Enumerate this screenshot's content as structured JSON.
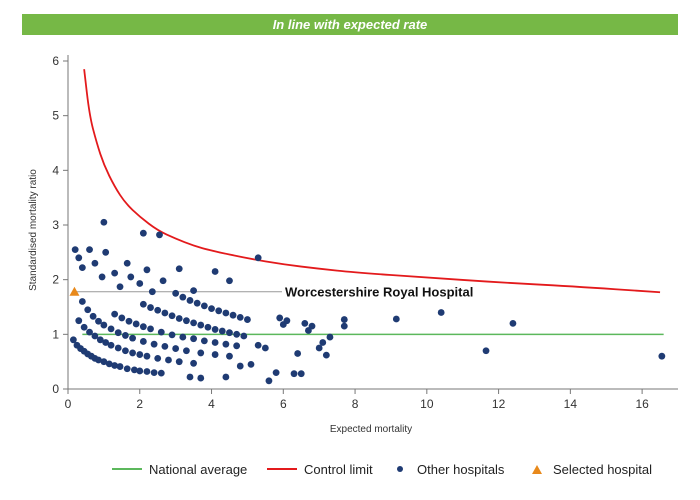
{
  "banner": {
    "text": "In line with expected rate",
    "color": "#76b846"
  },
  "chart_data": {
    "type": "scatter",
    "xlabel": "Expected mortality",
    "ylabel": "Standardised mortality ratio",
    "xlim": [
      0,
      17
    ],
    "ylim": [
      0,
      6
    ],
    "x_ticks": [
      0,
      2,
      4,
      6,
      8,
      10,
      12,
      14,
      16
    ],
    "y_ticks": [
      0,
      1,
      2,
      3,
      4,
      5,
      6
    ],
    "grid": false,
    "legend_placement": "bottom",
    "colors": {
      "national": "#5cb85c",
      "control": "#e31a1c",
      "other": "#1f3b73",
      "selected": "#e8891b",
      "reference": "#999999"
    },
    "national_average": {
      "name": "National average",
      "y": 1.0,
      "x_range": [
        0.4,
        16.6
      ]
    },
    "control_limit": {
      "name": "Control limit",
      "points": [
        [
          0.45,
          5.85
        ],
        [
          0.6,
          5.0
        ],
        [
          0.8,
          4.5
        ],
        [
          1.0,
          4.1
        ],
        [
          1.3,
          3.7
        ],
        [
          1.6,
          3.4
        ],
        [
          2.0,
          3.15
        ],
        [
          2.5,
          2.9
        ],
        [
          3.0,
          2.75
        ],
        [
          3.5,
          2.62
        ],
        [
          4.0,
          2.53
        ],
        [
          5.0,
          2.39
        ],
        [
          6.0,
          2.28
        ],
        [
          7.0,
          2.2
        ],
        [
          8.0,
          2.13
        ],
        [
          10.0,
          2.04
        ],
        [
          12.0,
          1.95
        ],
        [
          14.0,
          1.88
        ],
        [
          16.5,
          1.77
        ]
      ]
    },
    "selected_hospital": {
      "name": "Selected hospital",
      "label": "Worcestershire Royal Hospital",
      "x": 0.18,
      "y": 1.78
    },
    "other_hospitals": {
      "name": "Other hospitals",
      "points": [
        [
          0.15,
          0.9
        ],
        [
          0.25,
          0.8
        ],
        [
          0.35,
          0.74
        ],
        [
          0.45,
          0.69
        ],
        [
          0.55,
          0.64
        ],
        [
          0.65,
          0.6
        ],
        [
          0.75,
          0.56
        ],
        [
          0.85,
          0.53
        ],
        [
          1.0,
          0.5
        ],
        [
          1.15,
          0.46
        ],
        [
          1.3,
          0.43
        ],
        [
          1.45,
          0.41
        ],
        [
          1.65,
          0.37
        ],
        [
          1.85,
          0.35
        ],
        [
          2.0,
          0.33
        ],
        [
          2.2,
          0.32
        ],
        [
          2.4,
          0.3
        ],
        [
          2.6,
          0.29
        ],
        [
          0.3,
          1.25
        ],
        [
          0.45,
          1.13
        ],
        [
          0.6,
          1.04
        ],
        [
          0.75,
          0.97
        ],
        [
          0.9,
          0.9
        ],
        [
          1.05,
          0.85
        ],
        [
          1.2,
          0.8
        ],
        [
          1.4,
          0.75
        ],
        [
          1.6,
          0.7
        ],
        [
          1.8,
          0.66
        ],
        [
          2.0,
          0.63
        ],
        [
          2.2,
          0.6
        ],
        [
          2.5,
          0.56
        ],
        [
          2.8,
          0.53
        ],
        [
          3.1,
          0.5
        ],
        [
          3.5,
          0.47
        ],
        [
          0.4,
          1.6
        ],
        [
          0.55,
          1.45
        ],
        [
          0.7,
          1.33
        ],
        [
          0.85,
          1.24
        ],
        [
          1.0,
          1.17
        ],
        [
          1.2,
          1.1
        ],
        [
          1.4,
          1.03
        ],
        [
          1.6,
          0.98
        ],
        [
          1.8,
          0.93
        ],
        [
          2.1,
          0.87
        ],
        [
          2.4,
          0.82
        ],
        [
          2.7,
          0.78
        ],
        [
          3.0,
          0.74
        ],
        [
          3.3,
          0.7
        ],
        [
          3.7,
          0.66
        ],
        [
          4.1,
          0.63
        ],
        [
          4.5,
          0.6
        ],
        [
          1.3,
          1.37
        ],
        [
          1.5,
          1.3
        ],
        [
          1.7,
          1.24
        ],
        [
          1.9,
          1.19
        ],
        [
          2.1,
          1.14
        ],
        [
          2.3,
          1.1
        ],
        [
          2.6,
          1.04
        ],
        [
          2.9,
          0.99
        ],
        [
          3.2,
          0.95
        ],
        [
          3.5,
          0.92
        ],
        [
          3.8,
          0.88
        ],
        [
          4.1,
          0.85
        ],
        [
          4.4,
          0.82
        ],
        [
          4.7,
          0.79
        ],
        [
          2.1,
          1.55
        ],
        [
          2.3,
          1.49
        ],
        [
          2.5,
          1.44
        ],
        [
          2.7,
          1.39
        ],
        [
          2.9,
          1.34
        ],
        [
          3.1,
          1.29
        ],
        [
          3.3,
          1.25
        ],
        [
          3.5,
          1.21
        ],
        [
          3.7,
          1.17
        ],
        [
          3.9,
          1.13
        ],
        [
          4.1,
          1.09
        ],
        [
          4.3,
          1.06
        ],
        [
          4.5,
          1.03
        ],
        [
          4.7,
          1.0
        ],
        [
          4.9,
          0.97
        ],
        [
          3.0,
          1.75
        ],
        [
          3.2,
          1.68
        ],
        [
          3.4,
          1.62
        ],
        [
          3.6,
          1.57
        ],
        [
          3.8,
          1.52
        ],
        [
          4.0,
          1.47
        ],
        [
          4.2,
          1.43
        ],
        [
          4.4,
          1.39
        ],
        [
          4.6,
          1.35
        ],
        [
          4.8,
          1.31
        ],
        [
          5.0,
          1.27
        ],
        [
          0.2,
          2.55
        ],
        [
          0.3,
          2.4
        ],
        [
          0.4,
          2.22
        ],
        [
          0.6,
          2.55
        ],
        [
          0.75,
          2.3
        ],
        [
          0.95,
          2.05
        ],
        [
          1.0,
          3.05
        ],
        [
          1.05,
          2.5
        ],
        [
          1.3,
          2.12
        ],
        [
          1.45,
          1.87
        ],
        [
          1.65,
          2.3
        ],
        [
          1.75,
          2.05
        ],
        [
          2.0,
          1.93
        ],
        [
          2.1,
          2.85
        ],
        [
          2.2,
          2.18
        ],
        [
          2.35,
          1.78
        ],
        [
          2.55,
          2.82
        ],
        [
          2.65,
          1.98
        ],
        [
          3.1,
          2.2
        ],
        [
          3.5,
          1.8
        ],
        [
          4.1,
          2.15
        ],
        [
          4.5,
          1.98
        ],
        [
          5.3,
          2.4
        ],
        [
          3.4,
          0.22
        ],
        [
          3.7,
          0.2
        ],
        [
          4.4,
          0.22
        ],
        [
          4.8,
          0.42
        ],
        [
          5.1,
          0.45
        ],
        [
          5.3,
          0.8
        ],
        [
          5.5,
          0.75
        ],
        [
          5.6,
          0.15
        ],
        [
          5.8,
          0.3
        ],
        [
          5.9,
          1.3
        ],
        [
          6.0,
          1.18
        ],
        [
          6.1,
          1.25
        ],
        [
          6.3,
          0.28
        ],
        [
          6.4,
          0.65
        ],
        [
          6.5,
          0.28
        ],
        [
          6.6,
          1.2
        ],
        [
          6.7,
          1.07
        ],
        [
          6.8,
          1.15
        ],
        [
          7.0,
          0.75
        ],
        [
          7.1,
          0.85
        ],
        [
          7.2,
          0.62
        ],
        [
          7.3,
          0.95
        ],
        [
          7.7,
          1.15
        ],
        [
          7.7,
          1.27
        ],
        [
          9.15,
          1.28
        ],
        [
          10.4,
          1.4
        ],
        [
          11.65,
          0.7
        ],
        [
          12.4,
          1.2
        ],
        [
          16.55,
          0.6
        ]
      ]
    }
  },
  "legend": {
    "national": "National average",
    "control": "Control limit",
    "other": "Other hospitals",
    "selected": "Selected hospital"
  }
}
